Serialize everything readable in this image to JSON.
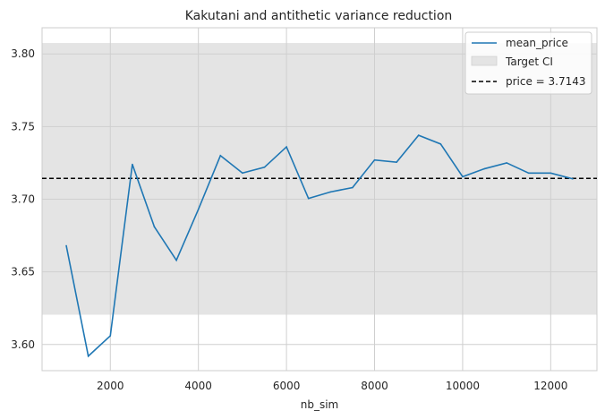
{
  "chart_data": {
    "type": "line",
    "title": "Kakutani and antithetic variance reduction",
    "xlabel": "nb_sim",
    "ylabel": "",
    "xlim": [
      450,
      13050
    ],
    "ylim": [
      3.582,
      3.818
    ],
    "xticks": [
      2000,
      4000,
      6000,
      8000,
      10000,
      12000
    ],
    "xtick_labels": [
      "2000",
      "4000",
      "6000",
      "8000",
      "10000",
      "12000"
    ],
    "yticks": [
      3.6,
      3.65,
      3.7,
      3.75,
      3.8
    ],
    "ytick_labels": [
      "3.60",
      "3.65",
      "3.70",
      "3.75",
      "3.80"
    ],
    "grid": true,
    "legend_position": "top-right",
    "series": [
      {
        "name": "mean_price",
        "color": "#1f77b4",
        "x": [
          1000,
          1500,
          2000,
          2500,
          3000,
          3500,
          4000,
          4500,
          5000,
          5500,
          6000,
          6500,
          7000,
          7500,
          8000,
          8500,
          9000,
          9500,
          10000,
          10500,
          11000,
          11500,
          12000,
          12500
        ],
        "values": [
          3.668,
          3.592,
          3.606,
          3.724,
          3.681,
          3.658,
          3.693,
          3.73,
          3.718,
          3.722,
          3.736,
          3.7005,
          3.705,
          3.708,
          3.727,
          3.7255,
          3.744,
          3.738,
          3.7155,
          3.721,
          3.725,
          3.718,
          3.718,
          3.714
        ]
      }
    ],
    "band": {
      "name": "Target CI",
      "color": "#e4e4e4",
      "low": 3.6205,
      "high": 3.8075
    },
    "reference_line": {
      "name": "price = 3.7143",
      "value": 3.7143,
      "color": "#000000",
      "style": "dashed"
    }
  }
}
